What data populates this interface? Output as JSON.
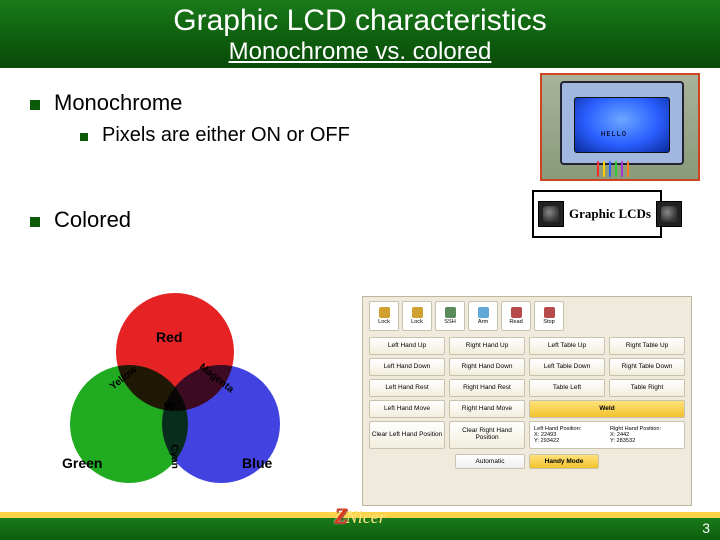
{
  "title": "Graphic LCD characteristics",
  "subtitle": "Monochrome vs. colored",
  "bullets": {
    "monochrome": "Monochrome",
    "mono_sub": "Pixels are either ON or OFF",
    "colored": "Colored"
  },
  "mono_img": {
    "border_color": "#cc4422",
    "screen_gradient_inner": "#6aa8ff",
    "screen_gradient_outer": "#0a2a99",
    "text": "HELLO",
    "wire_colors": [
      "#ff2a2a",
      "#ffcc00",
      "#2a66ff",
      "#33cc33",
      "#aa33cc",
      "#ff7a1a"
    ]
  },
  "glcd_banner": {
    "text": "Graphic LCDs"
  },
  "venn": {
    "circles": {
      "red": {
        "color": "#e41a1c",
        "label": "Red"
      },
      "green": {
        "color": "#18a818",
        "label": "Green"
      },
      "blue": {
        "color": "#3a3adf",
        "label": "Blue"
      }
    },
    "mix": {
      "yellow": "Yellow",
      "magenta": "Magenta",
      "cyan": "Cyan",
      "white": "W"
    }
  },
  "panel": {
    "bg": "#efeadb",
    "toolbar": [
      {
        "label": "Lock",
        "color": "#d0a030"
      },
      {
        "label": "Lock",
        "color": "#d0a030"
      },
      {
        "label": "SSH",
        "color": "#5a8a5a"
      },
      {
        "label": "Arm",
        "color": "#5fa8d8"
      },
      {
        "label": "Read",
        "color": "#b74a4a"
      },
      {
        "label": "Stop",
        "color": "#b74a4a"
      }
    ],
    "grid": [
      "Left Hand Up",
      "Right Hand Up",
      "Left Table Up",
      "Right Table Up",
      "Left Hand Down",
      "Right Hand Down",
      "Left Table Down",
      "Right Table Down",
      "Left Hand Rest",
      "Right Hand Rest",
      "Table Left",
      "Table Right",
      "Left Hand Move",
      "Right Hand Move"
    ],
    "weld": "Weld",
    "clear_left": "Clear Left Hand Position",
    "clear_right": "Clear Right Hand Position",
    "readout": {
      "left_title": "Left Hand Position:",
      "left_x": "X: 22493",
      "left_y": "Y: 293422",
      "right_title": "Right Hand Position:",
      "right_x": "X: 2442",
      "right_y": "Y: 283532"
    },
    "mode": {
      "auto": "Automatic",
      "handy": "Handy Mode"
    }
  },
  "footer": {
    "logo_z": "Z",
    "logo_rest": "Nicer",
    "page": "3"
  },
  "colors": {
    "header_grad_top": "#1a7a1a",
    "header_grad_bot": "#0a4a0a",
    "bullet_color": "#0a5a0a",
    "footer_gold": "#ffd24a"
  }
}
